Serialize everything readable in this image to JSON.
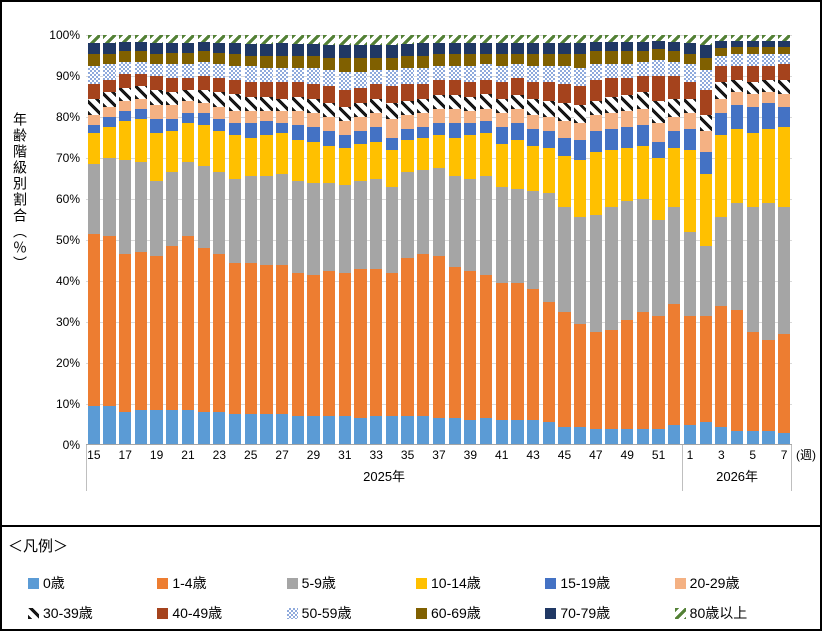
{
  "y_axis": {
    "title": "年齢階級別割合（％）",
    "ticks": [
      "0%",
      "10%",
      "20%",
      "30%",
      "40%",
      "50%",
      "60%",
      "70%",
      "80%",
      "90%",
      "100%"
    ]
  },
  "x_axis": {
    "unit_label": "(週)",
    "weeks": [
      "15",
      "16",
      "17",
      "18",
      "19",
      "20",
      "21",
      "22",
      "23",
      "24",
      "25",
      "26",
      "27",
      "28",
      "29",
      "30",
      "31",
      "32",
      "33",
      "34",
      "35",
      "36",
      "37",
      "38",
      "39",
      "40",
      "41",
      "42",
      "43",
      "44",
      "45",
      "46",
      "47",
      "48",
      "49",
      "50",
      "51",
      "52",
      "1",
      "2",
      "3",
      "4",
      "5",
      "6",
      "7"
    ],
    "label_every": 2,
    "groups": [
      {
        "label": "2025年",
        "count": 38
      },
      {
        "label": "2026年",
        "count": 7
      }
    ]
  },
  "legend": {
    "title": "＜凡例＞"
  },
  "chart_data": {
    "type": "bar",
    "stacked": "percent",
    "ylim": [
      0,
      100
    ],
    "grid": true,
    "gridline_color": "#d9d9d9",
    "categories": [
      "2025-w15",
      "2025-w16",
      "2025-w17",
      "2025-w18",
      "2025-w19",
      "2025-w20",
      "2025-w21",
      "2025-w22",
      "2025-w23",
      "2025-w24",
      "2025-w25",
      "2025-w26",
      "2025-w27",
      "2025-w28",
      "2025-w29",
      "2025-w30",
      "2025-w31",
      "2025-w32",
      "2025-w33",
      "2025-w34",
      "2025-w35",
      "2025-w36",
      "2025-w37",
      "2025-w38",
      "2025-w39",
      "2025-w40",
      "2025-w41",
      "2025-w42",
      "2025-w43",
      "2025-w44",
      "2025-w45",
      "2025-w46",
      "2025-w47",
      "2025-w48",
      "2025-w49",
      "2025-w50",
      "2025-w51",
      "2025-w52",
      "2026-w1",
      "2026-w2",
      "2026-w3",
      "2026-w4",
      "2026-w5",
      "2026-w6",
      "2026-w7"
    ],
    "series": [
      {
        "name": "0歳",
        "color": "#5b9bd5",
        "pattern": "solid",
        "values": [
          9.5,
          9.5,
          8,
          8.5,
          8.5,
          8.5,
          8.5,
          8,
          8,
          7.5,
          7.5,
          7.5,
          7.5,
          7,
          7,
          7,
          7,
          6.5,
          7,
          7,
          7,
          7,
          6.5,
          6.5,
          6,
          6.5,
          6,
          6,
          6,
          5.5,
          4.5,
          4.5,
          4,
          4,
          4,
          4,
          4,
          5,
          5,
          5.5,
          4.5,
          3.5,
          3.5,
          3.5,
          3
        ]
      },
      {
        "name": "1-4歳",
        "color": "#ed7d31",
        "pattern": "solid",
        "values": [
          42,
          41.5,
          38.5,
          38.5,
          37.5,
          40,
          42.5,
          40,
          38.5,
          37,
          37,
          36.5,
          36.5,
          35,
          34.5,
          35.5,
          35,
          36.5,
          36,
          35,
          38.5,
          39.5,
          39.5,
          37,
          36.5,
          35,
          33.5,
          33.5,
          32,
          29.5,
          28,
          25,
          23.5,
          24,
          26.5,
          28.5,
          27.5,
          29.5,
          26.5,
          26,
          29.5,
          29.5,
          24,
          22,
          24
        ]
      },
      {
        "name": "5-9歳",
        "color": "#a5a5a5",
        "pattern": "solid",
        "values": [
          17,
          19,
          23,
          22,
          18.5,
          18,
          18,
          20,
          20,
          20.5,
          21,
          21.5,
          22,
          22.5,
          22.5,
          21.5,
          21.5,
          21.5,
          22,
          21,
          21,
          20.5,
          21.5,
          22,
          22.5,
          24,
          23.5,
          23,
          24,
          26.5,
          25.5,
          26,
          28.5,
          30,
          29,
          27.5,
          23.5,
          23.5,
          20.5,
          17,
          21.5,
          26,
          30.5,
          33.5,
          31
        ]
      },
      {
        "name": "10-14歳",
        "color": "#ffc000",
        "pattern": "solid",
        "values": [
          7.5,
          7.5,
          9.5,
          10.5,
          11.5,
          10,
          9.5,
          10,
          10,
          10.5,
          9.5,
          10,
          10,
          10,
          10,
          9,
          9,
          9,
          9,
          9,
          8,
          8,
          8,
          9.5,
          10.5,
          10.5,
          10.5,
          12,
          11,
          11,
          12.5,
          14,
          15.5,
          14,
          13,
          13,
          15,
          14.5,
          20,
          17.5,
          20,
          18,
          18,
          18,
          19.5
        ]
      },
      {
        "name": "15-19歳",
        "color": "#4472c4",
        "pattern": "solid",
        "values": [
          2,
          2.5,
          2.5,
          2.5,
          3.5,
          3,
          2.5,
          3,
          3,
          3,
          3.5,
          3.5,
          2.5,
          3.5,
          3.5,
          3.5,
          3,
          3,
          3.5,
          3,
          2.5,
          2.5,
          3,
          3.5,
          3,
          3,
          4,
          4,
          4,
          4,
          4.5,
          5,
          5,
          5,
          5,
          5,
          4,
          4,
          5,
          5.5,
          5.5,
          6,
          6.5,
          6.5,
          5
        ]
      },
      {
        "name": "20-29歳",
        "color": "#f4b183",
        "pattern": "solid",
        "values": [
          2.5,
          2.5,
          2.5,
          2.5,
          3.5,
          3.5,
          3,
          2.5,
          3,
          3,
          3,
          2.5,
          3,
          3.5,
          3.5,
          3.5,
          3.5,
          3.5,
          3.5,
          4.5,
          3.5,
          3.5,
          3.5,
          3.5,
          3,
          3,
          3.5,
          3.5,
          3.5,
          3.5,
          4,
          4,
          4,
          4,
          4,
          4,
          4.5,
          3.5,
          4,
          5,
          3.5,
          3,
          3,
          2.5,
          3
        ]
      },
      {
        "name": "30-39歳",
        "color": "#161616",
        "pattern": "black-hatch",
        "values": [
          4,
          3.5,
          3,
          3,
          3.5,
          3,
          2.5,
          3,
          3.5,
          4,
          3.5,
          3.5,
          3,
          3.5,
          3.5,
          3.5,
          3.5,
          3.5,
          3.5,
          4,
          3.5,
          3.5,
          3.5,
          3.5,
          3.5,
          3.5,
          3.5,
          3.5,
          4,
          4,
          4.5,
          4.5,
          3.5,
          4,
          4,
          4,
          5.5,
          4.5,
          3.5,
          4,
          4,
          3,
          3,
          3,
          3.5
        ]
      },
      {
        "name": "40-49歳",
        "color": "#a5431d",
        "pattern": "solid",
        "values": [
          3.5,
          3,
          3.5,
          3,
          3.5,
          3.5,
          3,
          3.5,
          3.5,
          3.5,
          3.5,
          3.5,
          4,
          3.5,
          3.5,
          4,
          4,
          3.5,
          3.5,
          4,
          4,
          3.5,
          3.5,
          3.5,
          3.5,
          3.5,
          4,
          4,
          4,
          4.5,
          4.5,
          4.5,
          5,
          4.5,
          4,
          4,
          6,
          5.5,
          4,
          6,
          4,
          3.5,
          4,
          3.5,
          4
        ]
      },
      {
        "name": "50-59歳",
        "color": "#8faadc",
        "pattern": "blue-checker",
        "values": [
          4.5,
          4,
          3,
          3,
          3,
          3.5,
          3.5,
          3.5,
          3.5,
          3.5,
          4,
          3.5,
          3.5,
          3.5,
          4,
          4,
          4.5,
          4,
          3.5,
          4,
          4,
          4,
          3.5,
          3.5,
          4,
          4,
          4,
          3.5,
          4,
          4,
          4.5,
          4.5,
          4,
          3.5,
          3.5,
          3.5,
          4,
          3.5,
          4.5,
          5,
          2.5,
          3,
          3,
          3,
          2.5
        ]
      },
      {
        "name": "60-69歳",
        "color": "#806000",
        "pattern": "solid",
        "values": [
          3,
          2.5,
          2.5,
          2.5,
          2.5,
          2.5,
          2.5,
          2.5,
          2.5,
          3,
          2.5,
          3,
          3,
          3,
          3,
          3,
          3.5,
          3.5,
          3,
          3,
          3,
          3,
          3,
          3,
          3,
          2.5,
          3,
          2.5,
          3,
          3,
          3,
          3.5,
          3,
          3,
          3,
          2.5,
          2.5,
          2.5,
          2.5,
          3,
          1.8,
          1.5,
          1.5,
          1.5,
          1.5
        ]
      },
      {
        "name": "70-79歳",
        "color": "#203864",
        "pattern": "solid",
        "values": [
          2.5,
          2.5,
          2.2,
          2.2,
          2.5,
          2.5,
          2.5,
          2.2,
          2.5,
          2.5,
          2.8,
          2.8,
          3,
          2.8,
          2.8,
          3,
          3,
          3,
          3,
          3,
          2.8,
          3,
          2.5,
          2.5,
          2.5,
          2.5,
          2.5,
          2.5,
          2.5,
          2.5,
          2.5,
          2.5,
          2.2,
          2.2,
          2.2,
          2.2,
          2.1,
          2.4,
          2.5,
          3,
          1.7,
          1.6,
          1.5,
          1.5,
          1.5
        ]
      },
      {
        "name": "80歳以上",
        "color": "#538135",
        "pattern": "green-hatch",
        "values": [
          2,
          2,
          1.8,
          1.8,
          2,
          2,
          2,
          1.8,
          2,
          2,
          2.2,
          2.2,
          2,
          2.2,
          2.2,
          2.5,
          2.5,
          2.5,
          2.5,
          2.5,
          2.2,
          2,
          2,
          2,
          2,
          2,
          2,
          2,
          2,
          2,
          2,
          2,
          1.8,
          1.8,
          1.8,
          1.8,
          1.4,
          1.6,
          2,
          2.5,
          1.5,
          1.4,
          1.5,
          1.5,
          1.5
        ]
      }
    ]
  }
}
